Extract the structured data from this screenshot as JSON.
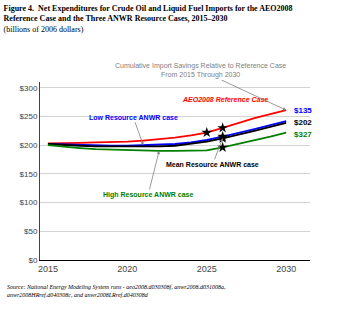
{
  "chart_data": {
    "type": "line",
    "title": "Figure 4.  Net Expenditures for Crude Oil and Liquid Fuel Imports for the AEO2008\nReference Case and the Three ANWR Resource Cases, 2015–2030",
    "subtitle": "(billions of 2006 dollars)",
    "source": "Source: National Energy Modeling System runs - aeo2008.d030308f, anwr2008.d031008a,\nanwr2008HRref.d040308c, and anwr2008LRref.d040308d",
    "note": {
      "text": "Cumulative Import Savings Relative to Reference Case\nFrom 2015 Through 2030",
      "series": 0
    },
    "x": [
      2015,
      2016,
      2017,
      2018,
      2019,
      2020,
      2021,
      2022,
      2023,
      2024,
      2025,
      2026,
      2027,
      2028,
      2029,
      2030
    ],
    "series": [
      {
        "name": "AEO2008 Reference Case",
        "color": "#ff0000",
        "marker": "star",
        "star_x": [
          2025,
          2026
        ],
        "values": [
          203,
          203,
          204,
          205,
          205,
          206,
          208,
          210,
          213,
          217,
          222,
          230,
          239,
          247,
          254,
          261
        ]
      },
      {
        "name": "Low Resource ANWR case",
        "color": "#0000ff",
        "marker": "star",
        "star_x": [
          2026
        ],
        "label_at": 2021,
        "end_label": "$135",
        "values": [
          202,
          201,
          200,
          200,
          199,
          199,
          200,
          201,
          202,
          205,
          209,
          215,
          221,
          228,
          235,
          242
        ]
      },
      {
        "name": "Mean Resource ANWR case",
        "color": "#000000",
        "marker": "star",
        "star_x": [
          2026
        ],
        "label_at": 2026,
        "end_label": "$202",
        "values": [
          202,
          200,
          199,
          198,
          198,
          197,
          197,
          198,
          199,
          202,
          206,
          212,
          218,
          225,
          232,
          239
        ]
      },
      {
        "name": "High Resource ANWR case",
        "color": "#008000",
        "marker": "star",
        "star_x": [
          2026
        ],
        "label_at": 2022,
        "end_label": "$327",
        "values": [
          200,
          197,
          195,
          193,
          192,
          191,
          190,
          190,
          190,
          191,
          191,
          196,
          202,
          208,
          215,
          222
        ]
      }
    ],
    "xlim": [
      2014.5,
      2031.5
    ],
    "xticks": [
      2015,
      2020,
      2025,
      2030
    ],
    "ylim": [
      0,
      310
    ],
    "yticks": [
      {
        "value": 0,
        "label": "$0"
      },
      {
        "value": 50,
        "label": "$50"
      },
      {
        "value": 100,
        "label": "$100"
      },
      {
        "value": 150,
        "label": "$150"
      },
      {
        "value": 200,
        "label": "$200"
      },
      {
        "value": 250,
        "label": "$250"
      },
      {
        "value": 300,
        "label": "$300"
      }
    ],
    "grid": "y"
  }
}
